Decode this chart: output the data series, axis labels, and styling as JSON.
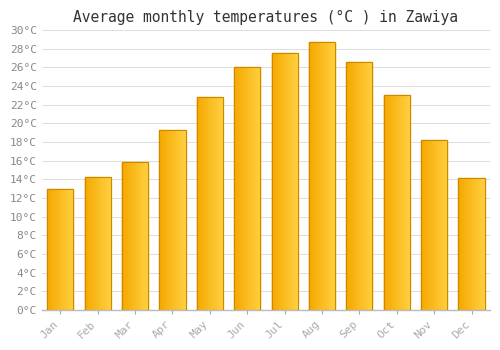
{
  "months": [
    "Jan",
    "Feb",
    "Mar",
    "Apr",
    "May",
    "Jun",
    "Jul",
    "Aug",
    "Sep",
    "Oct",
    "Nov",
    "Dec"
  ],
  "temperatures": [
    13.0,
    14.2,
    15.9,
    19.3,
    22.8,
    26.0,
    27.5,
    28.7,
    26.6,
    23.0,
    18.2,
    14.1
  ],
  "bar_color_left": "#F5A800",
  "bar_color_right": "#FFD040",
  "bar_edge_color": "#CC8800",
  "title": "Average monthly temperatures (°C ) in Zawiya",
  "ylim": [
    0,
    30
  ],
  "background_color": "#FFFFFF",
  "plot_bg_color": "#F8F8F8",
  "grid_color": "#DDDDDD",
  "title_fontsize": 10.5,
  "tick_fontsize": 8,
  "font_family": "monospace"
}
